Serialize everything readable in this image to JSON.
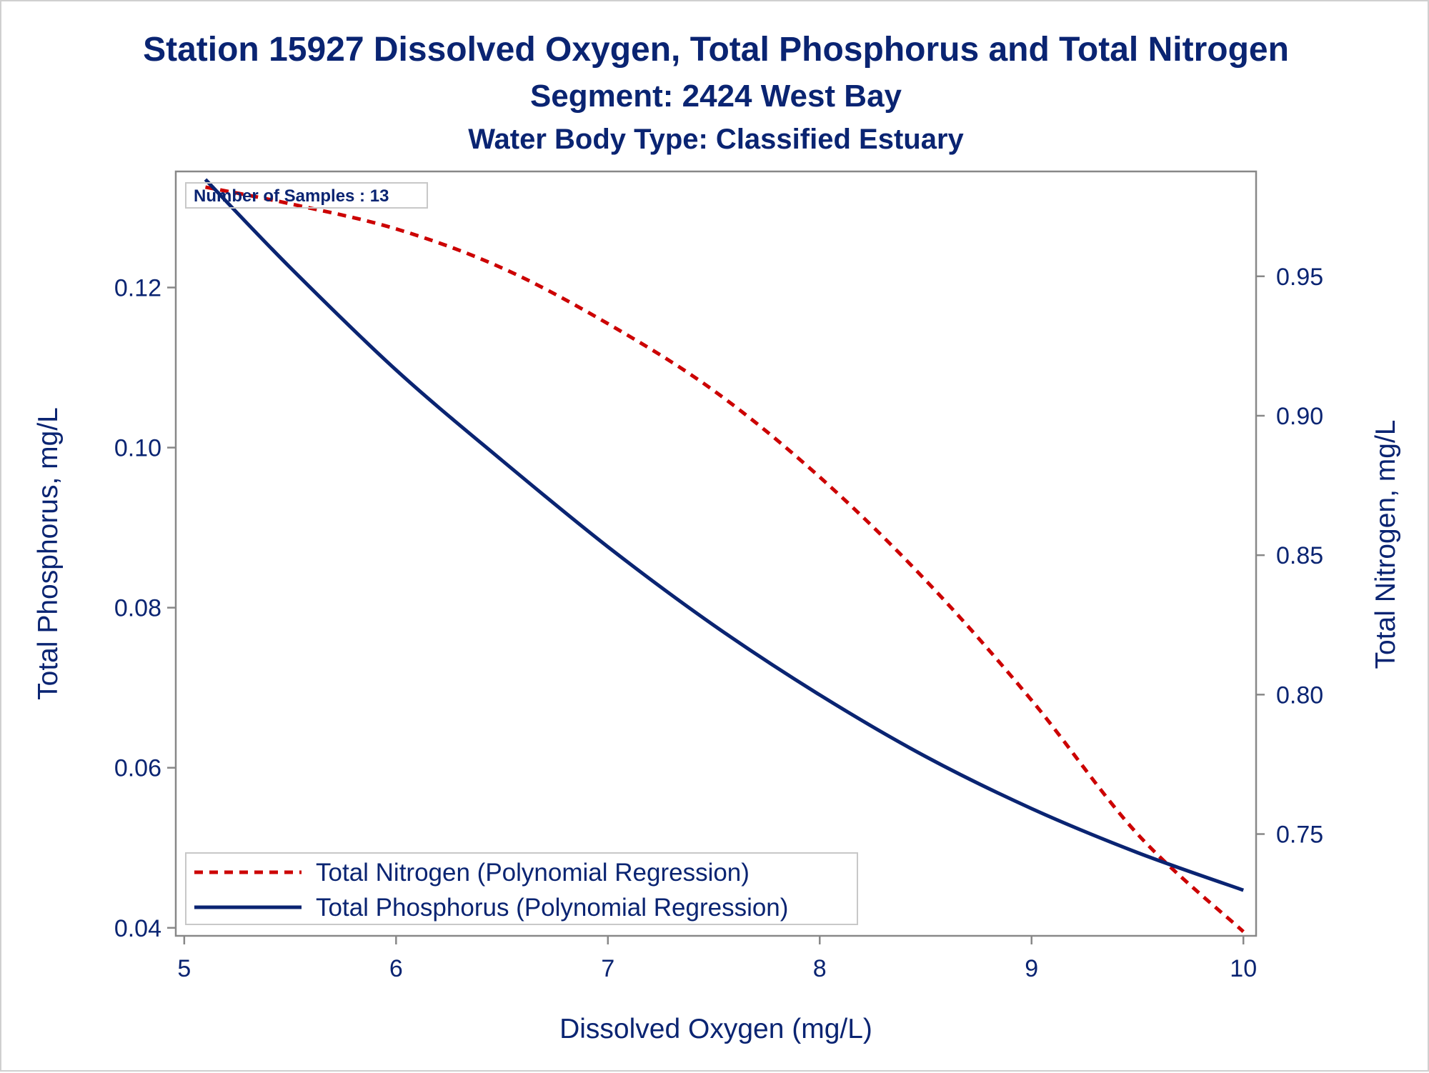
{
  "titles": {
    "main": "Station 15927  Dissolved Oxygen, Total Phosphorus and Total Nitrogen",
    "segment": "Segment: 2424  West Bay",
    "waterbody": "Water Body Type: Classified Estuary"
  },
  "annotation": {
    "samples": "Number of Samples : 13"
  },
  "colors": {
    "nitrogen": "#cc0000",
    "phosphorus": "#0a2472",
    "text": "#0a2472",
    "axis": "#888888"
  },
  "chart_data": {
    "type": "line",
    "xlabel": "Dissolved Oxygen (mg/L)",
    "ylabel": "Total Phosphorus, mg/L",
    "y2label": "Total Nitrogen, mg/L",
    "xlim": [
      4.96,
      10.06
    ],
    "ylim": [
      0.039,
      0.1345
    ],
    "y2lim": [
      0.7135,
      0.9876
    ],
    "xticks": [
      5,
      6,
      7,
      8,
      9,
      10
    ],
    "xtick_labels": [
      "5",
      "6",
      "7",
      "8",
      "9",
      "10"
    ],
    "yticks": [
      0.04,
      0.06,
      0.08,
      0.1,
      0.12
    ],
    "ytick_labels": [
      "0.04",
      "0.06",
      "0.08",
      "0.10",
      "0.12"
    ],
    "y2ticks": [
      0.75,
      0.8,
      0.85,
      0.9,
      0.95
    ],
    "y2tick_labels": [
      "0.75",
      "0.80",
      "0.85",
      "0.90",
      "0.95"
    ],
    "legend_position": "bottom-left",
    "series": [
      {
        "name": "Total Nitrogen (Polynomial Regression)",
        "axis": "right",
        "style": "dashed",
        "x": [
          5.1,
          5.5,
          6.0,
          6.5,
          7.0,
          7.5,
          8.0,
          8.5,
          9.0,
          9.5,
          10.0
        ],
        "y": [
          0.982,
          0.976,
          0.967,
          0.953,
          0.933,
          0.909,
          0.878,
          0.841,
          0.798,
          0.75,
          0.715
        ]
      },
      {
        "name": "Total Phosphorus (Polynomial Regression)",
        "axis": "left",
        "style": "solid",
        "x": [
          5.1,
          5.5,
          6.0,
          6.5,
          7.0,
          7.5,
          8.0,
          8.5,
          9.0,
          9.5,
          10.0
        ],
        "y": [
          0.1335,
          0.1225,
          0.1097,
          0.0984,
          0.0876,
          0.0778,
          0.0691,
          0.0614,
          0.0549,
          0.0494,
          0.0447
        ]
      }
    ]
  }
}
